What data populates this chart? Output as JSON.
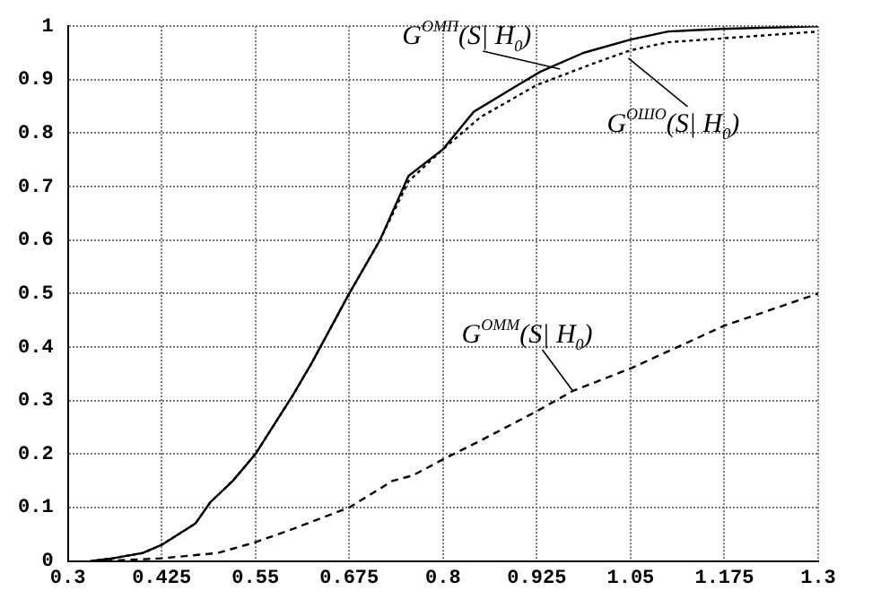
{
  "chart_data": {
    "type": "line",
    "xlim": [
      0.3,
      1.3
    ],
    "xticks": [
      0.3,
      0.425,
      0.55,
      0.675,
      0.8,
      0.925,
      1.05,
      1.175,
      1.3
    ],
    "ylim": [
      0,
      1
    ],
    "yticks": [
      0,
      0.1,
      0.2,
      0.3,
      0.4,
      0.5,
      0.6,
      0.7,
      0.8,
      0.9,
      1
    ],
    "grid": true,
    "marker": "none",
    "series": [
      {
        "color": "#000000",
        "line_style": "solid",
        "x": [
          0.33,
          0.36,
          0.4,
          0.425,
          0.47,
          0.49,
          0.52,
          0.55,
          0.6,
          0.625,
          0.675,
          0.716,
          0.754,
          0.8,
          0.841,
          0.9,
          0.93,
          0.987,
          1.05,
          1.1,
          1.17,
          1.3
        ],
        "values": [
          0,
          0.005,
          0.015,
          0.03,
          0.07,
          0.11,
          0.15,
          0.2,
          0.31,
          0.37,
          0.5,
          0.6,
          0.72,
          0.77,
          0.84,
          0.89,
          0.915,
          0.95,
          0.975,
          0.99,
          0.995,
          1.0
        ]
      },
      {
        "color": "#000000",
        "line_style": "dotted",
        "x": [
          0.33,
          0.36,
          0.4,
          0.425,
          0.47,
          0.49,
          0.52,
          0.55,
          0.6,
          0.625,
          0.675,
          0.716,
          0.754,
          0.8,
          0.85,
          0.9,
          0.925,
          1.0,
          1.05,
          1.1,
          1.2,
          1.3
        ],
        "values": [
          0,
          0.005,
          0.015,
          0.03,
          0.07,
          0.11,
          0.15,
          0.2,
          0.31,
          0.37,
          0.5,
          0.6,
          0.71,
          0.77,
          0.83,
          0.87,
          0.89,
          0.93,
          0.955,
          0.97,
          0.98,
          0.99
        ]
      },
      {
        "color": "#000000",
        "line_style": "dashed",
        "x": [
          0.35,
          0.425,
          0.5,
          0.55,
          0.6,
          0.675,
          0.733,
          0.76,
          0.8,
          0.85,
          0.925,
          0.973,
          1.05,
          1.175,
          1.3
        ],
        "values": [
          0,
          0.005,
          0.015,
          0.035,
          0.06,
          0.1,
          0.15,
          0.16,
          0.19,
          0.225,
          0.28,
          0.318,
          0.36,
          0.44,
          0.5
        ]
      }
    ],
    "annotations": [
      {
        "text": "G$^{ОМП}$(S| H$_{0}$)",
        "x": 0.956,
        "y": 0.92
      },
      {
        "text": "G$^{ОШО}$(S| H$_{0}$)",
        "x": 1.047,
        "y": 0.94
      },
      {
        "text": "G$^{ОММ}$(S| H$_{0}$)",
        "x": 0.973,
        "y": 0.318
      }
    ]
  }
}
